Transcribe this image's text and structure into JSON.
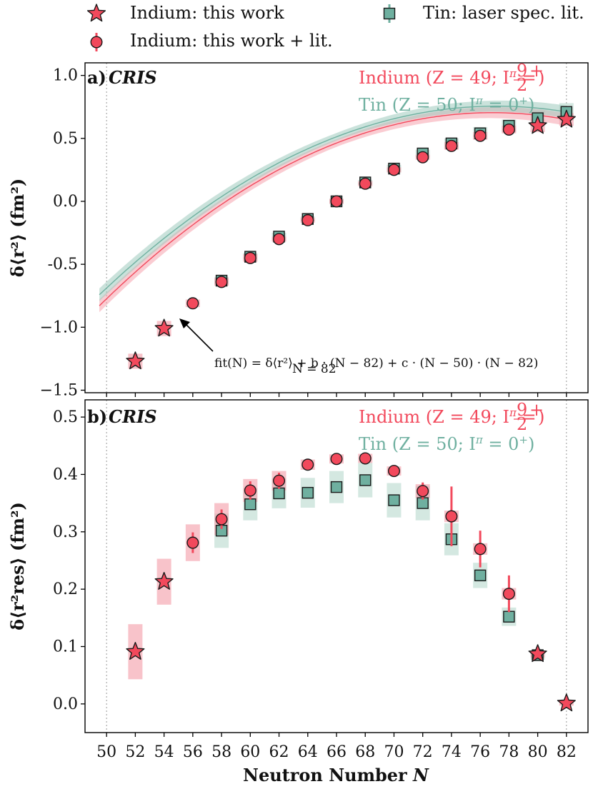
{
  "colors": {
    "indium": "#f2495c",
    "tin": "#6fb0a0",
    "indium_band": "#f5a3ad",
    "tin_band": "#9fcbbd",
    "frame": "#000000",
    "vline": "#999999"
  },
  "legend": {
    "in_this_work": "Indium: this work",
    "in_this_work_lit": "Indium: this work + lit.",
    "sn_lit": "Tin: laser spec. lit."
  },
  "xaxis": {
    "label_main": "Neutron Number ",
    "label_var": "N",
    "ticks": [
      "50",
      "52",
      "54",
      "56",
      "58",
      "60",
      "62",
      "64",
      "66",
      "68",
      "70",
      "72",
      "74",
      "76",
      "78",
      "80",
      "82"
    ],
    "range": [
      48.5,
      83.5
    ]
  },
  "annotations": {
    "indium_label": "Indium (Z = 49; I",
    "indium_pi": "π",
    "indium_eq": " = ",
    "indium_num": "9",
    "indium_den": "2",
    "indium_sup": "+",
    "indium_close": ")",
    "tin_label": "Tin (Z = 50; I",
    "tin_pi": "π",
    "tin_eq": " = 0",
    "tin_sup": "+",
    "tin_close": ")",
    "fit_formula": "fit(N) = δ⟨r²⟩ + b · (N − 82) + c · (N − 50) · (N − 82)",
    "fit_sub": "N = 82"
  },
  "chart_data": [
    {
      "type": "scatter",
      "panel_label": "a)",
      "panel_tag": "CRIS",
      "ylabel": "δ⟨r²⟩ (fm²)",
      "ylim": [
        -1.52,
        1.1
      ],
      "yticks": [
        "1.0",
        "0.5",
        "0.0",
        "-0.5",
        "−1.0",
        "−1.5"
      ],
      "ytick_values": [
        1.0,
        0.5,
        0.0,
        -0.5,
        -1.0,
        -1.5
      ],
      "series": [
        {
          "name": "Indium: this work",
          "marker": "star",
          "points": [
            [
              52,
              -1.27
            ],
            [
              54,
              -1.01
            ],
            [
              80,
              0.6
            ],
            [
              82,
              0.65
            ]
          ],
          "band": [
            0.06,
            0.06,
            0.05,
            0.05
          ]
        },
        {
          "name": "Indium: this work + lit.",
          "marker": "circle",
          "points": [
            [
              56,
              -0.81
            ],
            [
              58,
              -0.64
            ],
            [
              60,
              -0.45
            ],
            [
              62,
              -0.3
            ],
            [
              64,
              -0.15
            ],
            [
              66,
              0.0
            ],
            [
              68,
              0.14
            ],
            [
              70,
              0.25
            ],
            [
              72,
              0.35
            ],
            [
              74,
              0.44
            ],
            [
              76,
              0.52
            ],
            [
              78,
              0.57
            ]
          ],
          "band": [
            0.03,
            0.03,
            0.03,
            0.02,
            0.02,
            0.02,
            0.02,
            0.02,
            0.02,
            0.03,
            0.03,
            0.03
          ]
        },
        {
          "name": "Tin: laser spec. lit.",
          "marker": "square",
          "points": [
            [
              58,
              -0.63
            ],
            [
              60,
              -0.44
            ],
            [
              62,
              -0.28
            ],
            [
              64,
              -0.14
            ],
            [
              66,
              0.0
            ],
            [
              68,
              0.15
            ],
            [
              70,
              0.26
            ],
            [
              72,
              0.38
            ],
            [
              74,
              0.46
            ],
            [
              76,
              0.54
            ],
            [
              78,
              0.6
            ],
            [
              80,
              0.66
            ],
            [
              82,
              0.71
            ]
          ],
          "band": [
            0.03,
            0.03,
            0.03,
            0.02,
            0.02,
            0.02,
            0.03,
            0.03,
            0.04,
            0.05,
            0.05,
            0.06,
            0.07
          ]
        }
      ],
      "fits": [
        {
          "name": "Indium fit",
          "dr82": 0.65,
          "b": 0.0445,
          "c": -0.00205,
          "xrange": [
            49.5,
            82
          ]
        },
        {
          "name": "Tin fit",
          "dr82": 0.71,
          "b": 0.0437,
          "c": -0.00196,
          "xrange": [
            49.5,
            82
          ]
        }
      ]
    },
    {
      "type": "scatter",
      "panel_label": "b)",
      "panel_tag": "CRIS",
      "ylabel": "δ⟨r²res⟩ (fm²)",
      "ylim": [
        -0.05,
        0.53
      ],
      "yticks": [
        "0.5",
        "0.4",
        "0.3",
        "0.2",
        "0.1",
        "0.0"
      ],
      "ytick_values": [
        0.5,
        0.4,
        0.3,
        0.2,
        0.1,
        0.0
      ],
      "series": [
        {
          "name": "Indium: this work",
          "marker": "star",
          "points": [
            [
              52,
              0.091
            ],
            [
              54,
              0.213
            ],
            [
              80,
              0.087
            ],
            [
              82,
              0.001
            ]
          ],
          "err": [
            0,
            0,
            0,
            0
          ],
          "band": [
            0.048,
            0.04,
            0.006,
            0.004
          ]
        },
        {
          "name": "Indium: this work + lit.",
          "marker": "circle",
          "points": [
            [
              56,
              0.281
            ],
            [
              58,
              0.322
            ],
            [
              60,
              0.372
            ],
            [
              62,
              0.389
            ],
            [
              64,
              0.417
            ],
            [
              66,
              0.427
            ],
            [
              68,
              0.428
            ],
            [
              70,
              0.406
            ],
            [
              72,
              0.371
            ],
            [
              74,
              0.327
            ],
            [
              76,
              0.27
            ],
            [
              78,
              0.192
            ]
          ],
          "err": [
            0.018,
            0.017,
            0.016,
            0.014,
            0.005,
            0.005,
            0.005,
            0.005,
            0.015,
            0.052,
            0.032,
            0.032
          ],
          "band": [
            0.032,
            0.028,
            0.02,
            0.017,
            0.009,
            0.008,
            0.008,
            0.008,
            0.012,
            0.01,
            0.01,
            0.01
          ]
        },
        {
          "name": "Tin: laser spec. lit.",
          "marker": "square",
          "points": [
            [
              58,
              0.302
            ],
            [
              60,
              0.348
            ],
            [
              62,
              0.367
            ],
            [
              64,
              0.368
            ],
            [
              66,
              0.378
            ],
            [
              68,
              0.39
            ],
            [
              70,
              0.355
            ],
            [
              72,
              0.35
            ],
            [
              74,
              0.287
            ],
            [
              76,
              0.224
            ],
            [
              78,
              0.152
            ],
            [
              80,
              0.085
            ]
          ],
          "err": [
            0,
            0,
            0,
            0,
            0,
            0,
            0,
            0,
            0,
            0,
            0,
            0
          ],
          "band": [
            0.03,
            0.028,
            0.026,
            0.026,
            0.028,
            0.03,
            0.03,
            0.03,
            0.028,
            0.022,
            0.016,
            0.008
          ]
        }
      ]
    }
  ]
}
